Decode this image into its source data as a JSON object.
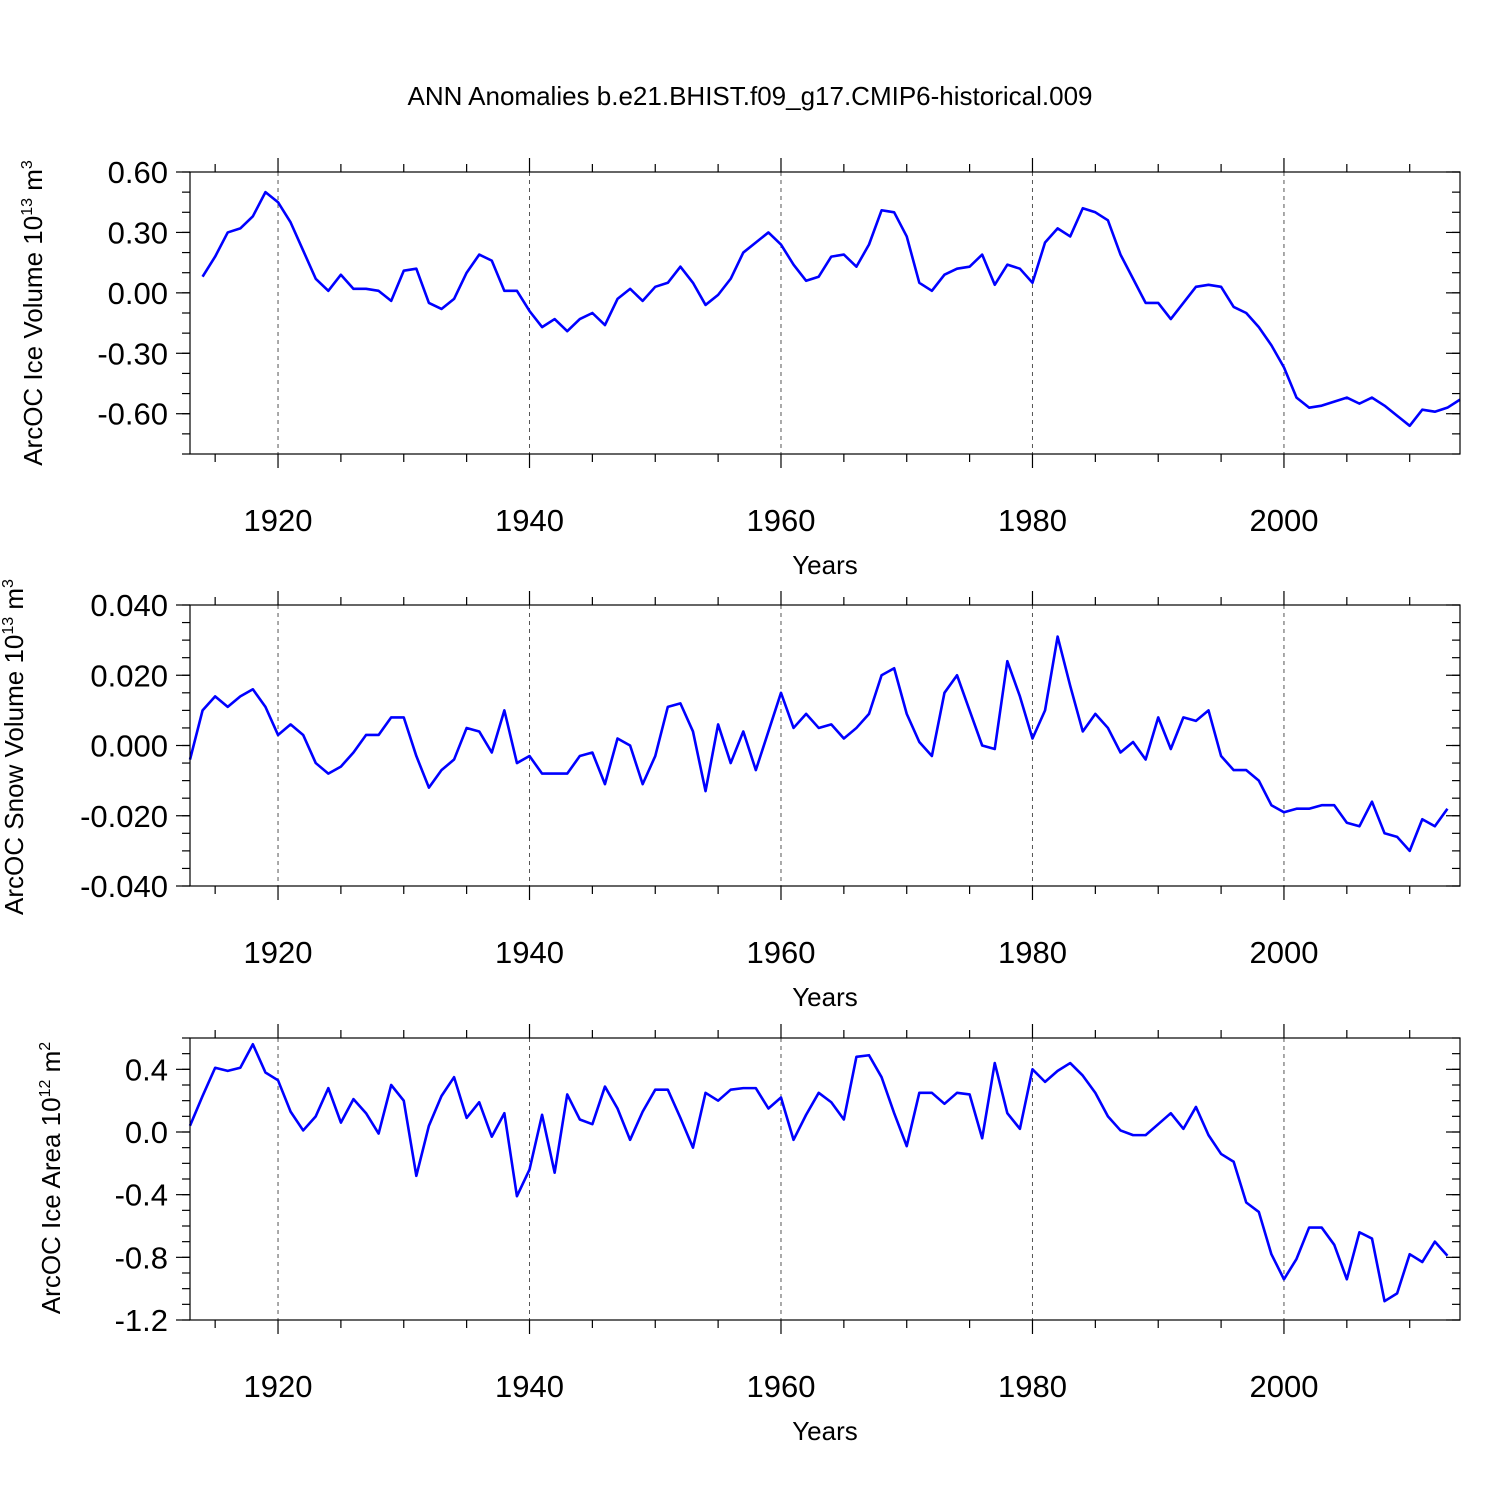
{
  "title": "ANN Anomalies b.e21.BHIST.f09_g17.CMIP6-historical.009",
  "colors": {
    "series": "#0000ff",
    "frame": "#000000",
    "grid": "#555555"
  },
  "chart_data": [
    {
      "type": "line",
      "ylabel_main": "ArcOC Ice Volume 10",
      "ylabel_exp": "13",
      "ylabel_unit": "m",
      "ylabel_unit_exp": "3",
      "xlabel": "Years",
      "xlim": [
        1913,
        2014
      ],
      "ylim": [
        -0.8,
        0.6
      ],
      "yticks": [
        0.6,
        0.3,
        0.0,
        -0.3,
        -0.6
      ],
      "ytick_labels": [
        "0.60",
        "0.30",
        "0.00",
        "-0.30",
        "-0.60"
      ],
      "xticks": [
        1920,
        1940,
        1960,
        1980,
        2000
      ],
      "xtick_labels": [
        "1920",
        "1940",
        "1960",
        "1980",
        "2000"
      ],
      "x_start": 1914,
      "values": [
        0.08,
        0.18,
        0.3,
        0.32,
        0.38,
        0.5,
        0.45,
        0.35,
        0.21,
        0.07,
        0.01,
        0.09,
        0.02,
        0.02,
        0.01,
        -0.04,
        0.11,
        0.12,
        -0.05,
        -0.08,
        -0.03,
        0.1,
        0.19,
        0.16,
        0.01,
        0.01,
        -0.09,
        -0.17,
        -0.13,
        -0.19,
        -0.13,
        -0.1,
        -0.16,
        -0.03,
        0.02,
        -0.04,
        0.03,
        0.05,
        0.13,
        0.05,
        -0.06,
        -0.01,
        0.07,
        0.2,
        0.25,
        0.3,
        0.24,
        0.14,
        0.06,
        0.08,
        0.18,
        0.19,
        0.13,
        0.24,
        0.41,
        0.4,
        0.28,
        0.05,
        0.01,
        0.09,
        0.12,
        0.13,
        0.19,
        0.04,
        0.14,
        0.12,
        0.05,
        0.25,
        0.32,
        0.28,
        0.42,
        0.4,
        0.36,
        0.19,
        0.07,
        -0.05,
        -0.05,
        -0.13,
        -0.05,
        0.03,
        0.04,
        0.03,
        -0.07,
        -0.1,
        -0.17,
        -0.26,
        -0.37,
        -0.52,
        -0.57,
        -0.56,
        -0.54,
        -0.52,
        -0.55,
        -0.52,
        -0.56,
        -0.61,
        -0.66,
        -0.58,
        -0.59,
        -0.57,
        -0.53
      ]
    },
    {
      "type": "line",
      "ylabel_main": "ArcOC Snow Volume 10",
      "ylabel_exp": "13",
      "ylabel_unit": "m",
      "ylabel_unit_exp": "3",
      "xlabel": "Years",
      "xlim": [
        1913,
        2014
      ],
      "ylim": [
        -0.04,
        0.04
      ],
      "yticks": [
        0.04,
        0.02,
        0.0,
        -0.02,
        -0.04
      ],
      "ytick_labels": [
        "0.040",
        "0.020",
        "0.000",
        "-0.020",
        "-0.040"
      ],
      "xticks": [
        1920,
        1940,
        1960,
        1980,
        2000
      ],
      "xtick_labels": [
        "1920",
        "1940",
        "1960",
        "1980",
        "2000"
      ],
      "x_start": 1913,
      "values": [
        -0.004,
        0.01,
        0.014,
        0.011,
        0.014,
        0.016,
        0.011,
        0.003,
        0.006,
        0.003,
        -0.005,
        -0.008,
        -0.006,
        -0.002,
        0.003,
        0.003,
        0.008,
        0.008,
        -0.003,
        -0.012,
        -0.007,
        -0.004,
        0.005,
        0.004,
        -0.002,
        0.01,
        -0.005,
        -0.003,
        -0.008,
        -0.008,
        -0.008,
        -0.003,
        -0.002,
        -0.011,
        0.002,
        0.0,
        -0.011,
        -0.003,
        0.011,
        0.012,
        0.004,
        -0.013,
        0.006,
        -0.005,
        0.004,
        -0.007,
        0.004,
        0.015,
        0.005,
        0.009,
        0.005,
        0.006,
        0.002,
        0.005,
        0.009,
        0.02,
        0.022,
        0.009,
        0.001,
        -0.003,
        0.015,
        0.02,
        0.01,
        0.0,
        -0.001,
        0.024,
        0.014,
        0.002,
        0.01,
        0.031,
        0.017,
        0.004,
        0.009,
        0.005,
        -0.002,
        0.001,
        -0.004,
        0.008,
        -0.001,
        0.008,
        0.007,
        0.01,
        -0.003,
        -0.007,
        -0.007,
        -0.01,
        -0.017,
        -0.019,
        -0.018,
        -0.018,
        -0.017,
        -0.017,
        -0.022,
        -0.023,
        -0.016,
        -0.025,
        -0.026,
        -0.03,
        -0.021,
        -0.023,
        -0.018
      ]
    },
    {
      "type": "line",
      "ylabel_main": "ArcOC Ice Area 10",
      "ylabel_exp": "12",
      "ylabel_unit": "m",
      "ylabel_unit_exp": "2",
      "xlabel": "Years",
      "xlim": [
        1913,
        2014
      ],
      "ylim": [
        -1.2,
        0.6
      ],
      "yticks": [
        0.4,
        0.0,
        -0.4,
        -0.8,
        -1.2
      ],
      "ytick_labels": [
        "0.4",
        "0.0",
        "-0.4",
        "-0.8",
        "-1.2"
      ],
      "xticks": [
        1920,
        1940,
        1960,
        1980,
        2000
      ],
      "xtick_labels": [
        "1920",
        "1940",
        "1960",
        "1980",
        "2000"
      ],
      "x_start": 1913,
      "values": [
        0.04,
        0.23,
        0.41,
        0.39,
        0.41,
        0.56,
        0.38,
        0.33,
        0.13,
        0.01,
        0.1,
        0.28,
        0.06,
        0.21,
        0.12,
        -0.01,
        0.3,
        0.2,
        -0.28,
        0.04,
        0.23,
        0.35,
        0.09,
        0.19,
        -0.03,
        0.12,
        -0.41,
        -0.24,
        0.11,
        -0.26,
        0.24,
        0.08,
        0.05,
        0.29,
        0.15,
        -0.05,
        0.13,
        0.27,
        0.27,
        0.09,
        -0.1,
        0.25,
        0.2,
        0.27,
        0.28,
        0.28,
        0.15,
        0.22,
        -0.05,
        0.11,
        0.25,
        0.19,
        0.08,
        0.48,
        0.49,
        0.35,
        0.12,
        -0.09,
        0.25,
        0.25,
        0.18,
        0.25,
        0.24,
        -0.04,
        0.44,
        0.12,
        0.02,
        0.4,
        0.32,
        0.39,
        0.44,
        0.36,
        0.25,
        0.1,
        0.01,
        -0.02,
        -0.02,
        0.05,
        0.12,
        0.02,
        0.16,
        -0.02,
        -0.14,
        -0.19,
        -0.45,
        -0.51,
        -0.78,
        -0.94,
        -0.81,
        -0.61,
        -0.61,
        -0.72,
        -0.94,
        -0.64,
        -0.68,
        -1.08,
        -1.03,
        -0.78,
        -0.83,
        -0.7,
        -0.79
      ]
    }
  ]
}
